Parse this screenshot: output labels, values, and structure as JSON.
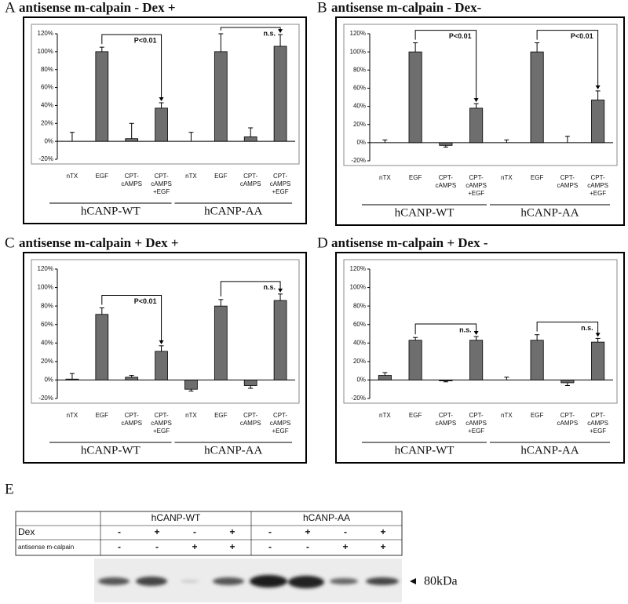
{
  "chart_data": [
    {
      "panel": "A",
      "type": "bar",
      "title": "antisense m-calpain -  Dex +",
      "categories": [
        [
          "nTX"
        ],
        [
          "EGF"
        ],
        [
          "CPT-",
          "cAMPS"
        ],
        [
          "CPT-",
          "cAMPS",
          "+EGF"
        ],
        [
          "nTX"
        ],
        [
          "EGF"
        ],
        [
          "CPT-",
          "cAMPS"
        ],
        [
          "CPT-",
          "cAMPS",
          "+EGF"
        ]
      ],
      "groups": [
        "hCANP-WT",
        "hCANP-AA"
      ],
      "values": [
        0,
        100,
        3,
        37,
        0,
        100,
        5,
        106
      ],
      "errors": [
        10,
        5,
        17,
        6,
        10,
        20,
        10,
        13
      ],
      "color": "#6e6e6e",
      "ylim": [
        -20,
        120
      ],
      "yticks": [
        {
          "value": -20,
          "label": "-20%"
        },
        {
          "value": 0,
          "label": "0%"
        },
        {
          "value": 20,
          "label": "20%"
        },
        {
          "value": 40,
          "label": "40%"
        },
        {
          "value": 60,
          "label": "60%"
        },
        {
          "value": 80,
          "label": "80%"
        },
        {
          "value": 100,
          "label": "100%"
        },
        {
          "value": 120,
          "label": "120%"
        }
      ],
      "comparisons": [
        {
          "from": 1,
          "to": 3,
          "label": "P<0.01"
        },
        {
          "from": 5,
          "to": 7,
          "label": "n.s."
        }
      ]
    },
    {
      "panel": "B",
      "type": "bar",
      "title": "antisense m-calpain -  Dex-",
      "categories": [
        [
          "nTX"
        ],
        [
          "EGF"
        ],
        [
          "CPT-",
          "cAMPS"
        ],
        [
          "CPT-",
          "cAMPS",
          "+EGF"
        ],
        [
          "nTX"
        ],
        [
          "EGF"
        ],
        [
          "CPT-",
          "cAMPS"
        ],
        [
          "CPT-",
          "cAMPS",
          "+EGF"
        ]
      ],
      "groups": [
        "hCANP-WT",
        "hCANP-AA"
      ],
      "values": [
        0,
        100,
        -3,
        38,
        0,
        100,
        0,
        47
      ],
      "errors": [
        3,
        10,
        2,
        5,
        3,
        10,
        7,
        10
      ],
      "color": "#6e6e6e",
      "ylim": [
        -20,
        120
      ],
      "yticks": [
        {
          "value": -20,
          "label": "-20%"
        },
        {
          "value": 0,
          "label": "0%"
        },
        {
          "value": 20,
          "label": "20%"
        },
        {
          "value": 40,
          "label": "40%"
        },
        {
          "value": 60,
          "label": "60%"
        },
        {
          "value": 80,
          "label": "80%"
        },
        {
          "value": 100,
          "label": "100%"
        },
        {
          "value": 120,
          "label": "120%"
        }
      ],
      "comparisons": [
        {
          "from": 1,
          "to": 3,
          "label": "P<0.01"
        },
        {
          "from": 5,
          "to": 7,
          "label": "P<0.01"
        }
      ]
    },
    {
      "panel": "C",
      "type": "bar",
      "title": "antisense m-calpain +  Dex +",
      "categories": [
        [
          "nTX"
        ],
        [
          "EGF"
        ],
        [
          "CPT-",
          "cAMPS"
        ],
        [
          "CPT-",
          "cAMPS",
          "+EGF"
        ],
        [
          "nTX"
        ],
        [
          "EGF"
        ],
        [
          "CPT-",
          "cAMPS"
        ],
        [
          "CPT-",
          "cAMPS",
          "+EGF"
        ]
      ],
      "groups": [
        "hCANP-WT",
        "hCANP-AA"
      ],
      "values": [
        1,
        71,
        3,
        31,
        -10,
        80,
        -6,
        86
      ],
      "errors": [
        6,
        7,
        2,
        6,
        2,
        7,
        3,
        7
      ],
      "color": "#6e6e6e",
      "ylim": [
        -20,
        120
      ],
      "yticks": [
        {
          "value": -20,
          "label": "-20%"
        },
        {
          "value": 0,
          "label": "0%"
        },
        {
          "value": 20,
          "label": "20%"
        },
        {
          "value": 40,
          "label": "40%"
        },
        {
          "value": 60,
          "label": "60%"
        },
        {
          "value": 80,
          "label": "80%"
        },
        {
          "value": 100,
          "label": "100%"
        },
        {
          "value": 120,
          "label": "120%"
        }
      ],
      "comparisons": [
        {
          "from": 1,
          "to": 3,
          "label": "P<0.01"
        },
        {
          "from": 5,
          "to": 7,
          "label": "n.s."
        }
      ]
    },
    {
      "panel": "D",
      "type": "bar",
      "title": "antisense m-calpain +  Dex -",
      "categories": [
        [
          "nTX"
        ],
        [
          "EGF"
        ],
        [
          "CPT-",
          "cAMPS"
        ],
        [
          "CPT-",
          "cAMPS",
          "+EGF"
        ],
        [
          "nTX"
        ],
        [
          "EGF"
        ],
        [
          "CPT-",
          "cAMPS"
        ],
        [
          "CPT-",
          "cAMPS",
          "+EGF"
        ]
      ],
      "groups": [
        "hCANP-WT",
        "hCANP-AA"
      ],
      "values": [
        5,
        43,
        -1,
        43,
        0,
        43,
        -3,
        41
      ],
      "errors": [
        3,
        3,
        1,
        4,
        3,
        6,
        3,
        4
      ],
      "color": "#6e6e6e",
      "ylim": [
        -20,
        120
      ],
      "yticks": [
        {
          "value": -20,
          "label": "-20%"
        },
        {
          "value": 0,
          "label": "0%"
        },
        {
          "value": 20,
          "label": "20%"
        },
        {
          "value": 40,
          "label": "40%"
        },
        {
          "value": 60,
          "label": "60%"
        },
        {
          "value": 80,
          "label": "80%"
        },
        {
          "value": 100,
          "label": "100%"
        },
        {
          "value": 120,
          "label": "120%"
        }
      ],
      "comparisons": [
        {
          "from": 1,
          "to": 3,
          "label": "n.s."
        },
        {
          "from": 5,
          "to": 7,
          "label": "n.s."
        }
      ]
    }
  ],
  "blot": {
    "panel": "E",
    "groups": [
      "hCANP-WT",
      "hCANP-AA"
    ],
    "rows": [
      {
        "label": "Dex",
        "cells": [
          "-",
          "+",
          "-",
          "+",
          "-",
          "+",
          "-",
          "+"
        ]
      },
      {
        "label": "antisense m-calpain",
        "cells": [
          "-",
          "-",
          "+",
          "+",
          "-",
          "-",
          "+",
          "+"
        ]
      }
    ],
    "marker": "80kDa"
  }
}
